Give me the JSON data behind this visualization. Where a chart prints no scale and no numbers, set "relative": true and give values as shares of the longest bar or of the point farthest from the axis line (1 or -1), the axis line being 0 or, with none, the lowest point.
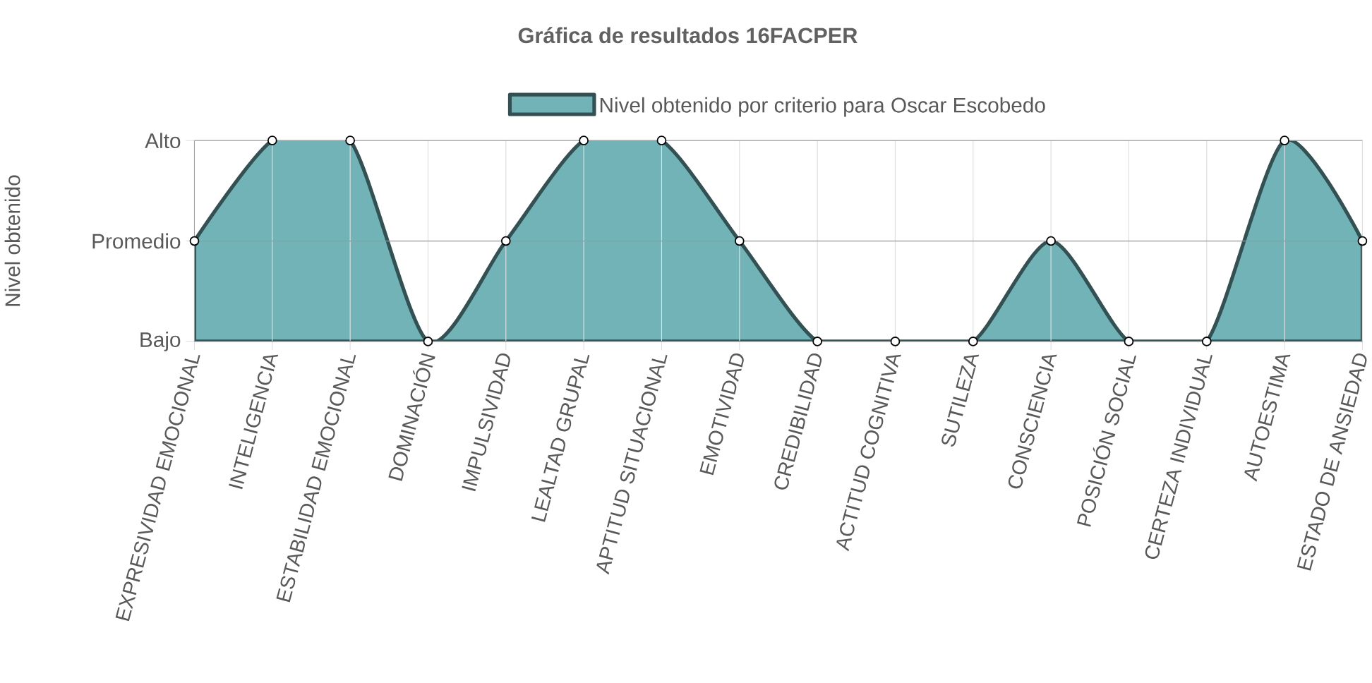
{
  "chart_data": {
    "type": "area",
    "title": "Gráfica de resultados 16FACPER",
    "ylabel": "Nivel obtenido",
    "categories": [
      "EXPRESIVIDAD EMOCIONAL",
      "INTELIGENCIA",
      "ESTABILIDAD EMOCIONAL",
      "DOMINACIÓN",
      "IMPULSIVIDAD",
      "LEALTAD GRUPAL",
      "APTITUD SITUACIONAL",
      "EMOTIVIDAD",
      "CREDIBILIDAD",
      "ACTITUD COGNITIVA",
      "SUTILEZA",
      "CONSCIENCIA",
      "POSICIÓN SOCIAL",
      "CERTEZA INDIVIDUAL",
      "AUTOESTIMA",
      "ESTADO DE ANSIEDAD"
    ],
    "series": [
      {
        "name": "Nivel obtenido por criterio para Oscar Escobedo",
        "color": "#72b3b8",
        "values": [
          0.5,
          1,
          1,
          0,
          0.5,
          1,
          1,
          0.5,
          0,
          0,
          0,
          0.5,
          0,
          0,
          1,
          0.5
        ]
      }
    ],
    "relative": true,
    "annotations": [
      "Bajo",
      "Promedio",
      "Alto"
    ],
    "grid": true,
    "legend": "top",
    "marker": "circle",
    "line_style": "solid"
  }
}
